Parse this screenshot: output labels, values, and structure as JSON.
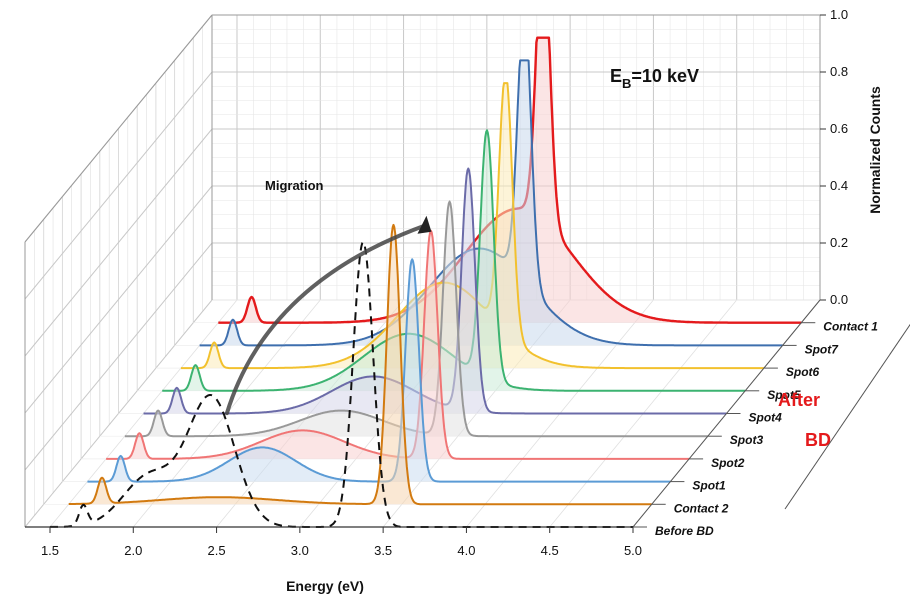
{
  "chart_data": {
    "type": "line",
    "subtype": "3d-waterfall",
    "xlabel": "Energy (eV)",
    "zlabel": "Normalized Counts",
    "xlim": [
      1.35,
      5.0
    ],
    "zlim": [
      0.0,
      1.0
    ],
    "x_ticks": [
      "1.5",
      "2.0",
      "2.5",
      "3.0",
      "3.5",
      "4.0",
      "4.5",
      "5.0"
    ],
    "x_tick_values": [
      1.5,
      2.0,
      2.5,
      3.0,
      3.5,
      4.0,
      4.5,
      5.0
    ],
    "z_ticks": [
      "0.0",
      "0.2",
      "0.4",
      "0.6",
      "0.8",
      "1.0"
    ],
    "z_tick_values": [
      0.0,
      0.2,
      0.4,
      0.6,
      0.8,
      1.0
    ],
    "grid": true,
    "annotations": {
      "beam_energy_main": "E",
      "beam_energy_sub": "B",
      "beam_energy_rest": "=10 keV",
      "migration": "Migration",
      "after_bd_line1": "After",
      "after_bd_line2": "BD"
    },
    "series": [
      {
        "name": "Before BD",
        "color": "#111111",
        "dashed": true,
        "fill": "none",
        "peaks": [
          {
            "c": 1.7,
            "w": 0.025,
            "a": 0.07
          },
          {
            "c": 2.1,
            "w": 0.16,
            "a": 0.18
          },
          {
            "c": 2.47,
            "w": 0.14,
            "a": 0.45
          },
          {
            "c": 3.38,
            "w": 0.06,
            "a": 1.0
          }
        ]
      },
      {
        "name": "Contact 2",
        "color": "#D27A10",
        "dashed": false,
        "fill": "#F5D5B0",
        "peaks": [
          {
            "c": 1.7,
            "w": 0.025,
            "a": 0.09
          },
          {
            "c": 2.4,
            "w": 0.35,
            "a": 0.025
          },
          {
            "c": 3.45,
            "w": 0.04,
            "a": 0.98
          }
        ]
      },
      {
        "name": "Spot1",
        "color": "#5B9BD5",
        "dashed": false,
        "fill": "#CADCF0",
        "peaks": [
          {
            "c": 1.7,
            "w": 0.025,
            "a": 0.09
          },
          {
            "c": 2.55,
            "w": 0.2,
            "a": 0.12
          },
          {
            "c": 3.45,
            "w": 0.04,
            "a": 0.78
          }
        ]
      },
      {
        "name": "Spot2",
        "color": "#F07575",
        "dashed": false,
        "fill": "#F8CFCF",
        "peaks": [
          {
            "c": 1.7,
            "w": 0.025,
            "a": 0.09
          },
          {
            "c": 2.68,
            "w": 0.25,
            "a": 0.1
          },
          {
            "c": 3.45,
            "w": 0.04,
            "a": 0.8
          }
        ]
      },
      {
        "name": "Spot3",
        "color": "#999999",
        "dashed": false,
        "fill": "#E2E2E2",
        "peaks": [
          {
            "c": 1.7,
            "w": 0.025,
            "a": 0.09
          },
          {
            "c": 2.8,
            "w": 0.25,
            "a": 0.09
          },
          {
            "c": 3.45,
            "w": 0.04,
            "a": 0.82
          }
        ]
      },
      {
        "name": "Spot4",
        "color": "#6B6BA8",
        "dashed": false,
        "fill": "#D6D6EA",
        "peaks": [
          {
            "c": 1.7,
            "w": 0.025,
            "a": 0.09
          },
          {
            "c": 2.88,
            "w": 0.25,
            "a": 0.13
          },
          {
            "c": 3.45,
            "w": 0.04,
            "a": 0.85
          }
        ]
      },
      {
        "name": "Spot5",
        "color": "#3CB371",
        "dashed": false,
        "fill": "#CBEBD7",
        "peaks": [
          {
            "c": 1.7,
            "w": 0.025,
            "a": 0.09
          },
          {
            "c": 2.98,
            "w": 0.27,
            "a": 0.2
          },
          {
            "c": 3.45,
            "w": 0.04,
            "a": 0.87
          }
        ]
      },
      {
        "name": "Spot6",
        "color": "#F2C12E",
        "dashed": false,
        "fill": "#FBEBB8",
        "peaks": [
          {
            "c": 1.7,
            "w": 0.025,
            "a": 0.09
          },
          {
            "c": 3.08,
            "w": 0.28,
            "a": 0.3
          },
          {
            "c": 3.45,
            "w": 0.04,
            "a": 0.91
          }
        ]
      },
      {
        "name": "Spot7",
        "color": "#3E6FAE",
        "dashed": false,
        "fill": "#C8D8EC",
        "peaks": [
          {
            "c": 1.7,
            "w": 0.025,
            "a": 0.09
          },
          {
            "c": 3.18,
            "w": 0.3,
            "a": 0.34
          },
          {
            "c": 3.45,
            "w": 0.04,
            "a": 0.96
          }
        ]
      },
      {
        "name": "Contact 1",
        "color": "#E41A1C",
        "dashed": false,
        "fill": "#F8CFCF",
        "peaks": [
          {
            "c": 1.7,
            "w": 0.025,
            "a": 0.09
          },
          {
            "c": 3.3,
            "w": 0.32,
            "a": 0.4
          },
          {
            "c": 3.45,
            "w": 0.04,
            "a": 1.0
          }
        ]
      }
    ]
  },
  "colors": {
    "after_bd": "#E41A1C",
    "grid": "#C8C8C8",
    "frame": "#9A9A9A",
    "migration_arrow": "#444444"
  }
}
